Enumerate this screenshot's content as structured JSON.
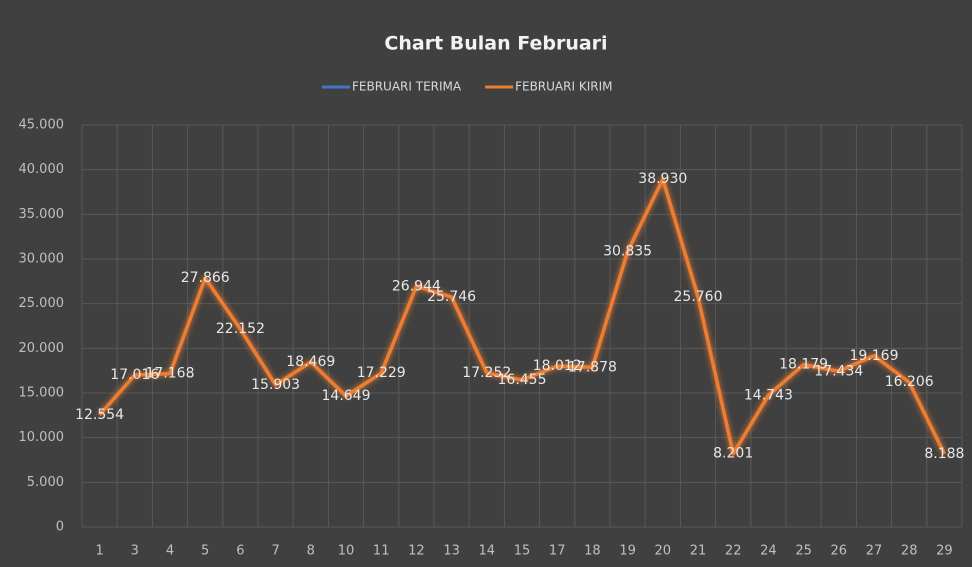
{
  "chart_data": {
    "type": "line",
    "title": "Chart Bulan Februari",
    "categories": [
      "1",
      "3",
      "4",
      "5",
      "6",
      "7",
      "8",
      "10",
      "11",
      "12",
      "13",
      "14",
      "15",
      "17",
      "18",
      "19",
      "20",
      "21",
      "22",
      "24",
      "25",
      "26",
      "27",
      "28",
      "29"
    ],
    "series": [
      {
        "name": "FEBRUARI TERIMA",
        "color": "#4472c4",
        "values": [
          null,
          null,
          null,
          null,
          null,
          null,
          null,
          null,
          null,
          null,
          null,
          null,
          null,
          null,
          null,
          null,
          null,
          null,
          null,
          null,
          null,
          null,
          null,
          null,
          null
        ]
      },
      {
        "name": "FEBRUARI KIRIM",
        "color": "#ed7d31",
        "values": [
          12554,
          17016,
          17168,
          27866,
          22152,
          15903,
          18469,
          14649,
          17229,
          26944,
          25746,
          17252,
          16455,
          18012,
          17878,
          30835,
          38930,
          25760,
          8201,
          14743,
          18179,
          17434,
          19169,
          16206,
          8188
        ],
        "value_labels": [
          "12.554",
          "17.016",
          "17.168",
          "27.866",
          "22.152",
          "15.903",
          "18.469",
          "14.649",
          "17.229",
          "26.944",
          "25.746",
          "17.252",
          "16.455",
          "18.012",
          "17.878",
          "30.835",
          "38.930",
          "25.760",
          "8.201",
          "14.743",
          "18.179",
          "17.434",
          "19.169",
          "16.206",
          "8.188"
        ]
      }
    ],
    "ylim": [
      0,
      45000
    ],
    "yticks": [
      0,
      {
        "value": 5000,
        "label": "5.000"
      },
      {
        "value": 10000,
        "label": "10.000"
      },
      {
        "value": 15000,
        "label": "15.000"
      },
      {
        "value": 20000,
        "label": "20.000"
      },
      {
        "value": 25000,
        "label": "25.000"
      },
      {
        "value": 30000,
        "label": "30.000"
      },
      {
        "value": 35000,
        "label": "35.000"
      },
      {
        "value": 40000,
        "label": "40.000"
      },
      {
        "value": 45000,
        "label": "45.000"
      }
    ],
    "grid": true,
    "legend": "top"
  }
}
